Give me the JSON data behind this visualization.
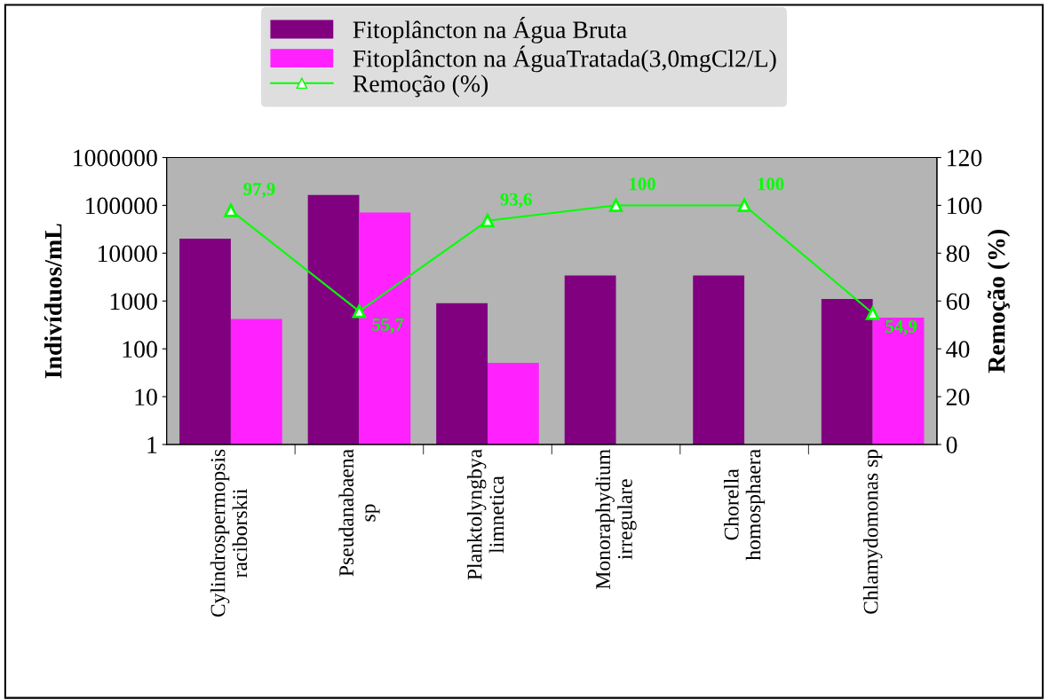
{
  "chart_data": {
    "type": "bar",
    "ylabel": "Indivíduos/mL",
    "y2label": "Remoção (%)",
    "categories": [
      "Cylindrospermopsis\nraciborskii",
      "Pseudanabaena\nsp",
      "Planktolyngbya\nlimnetica",
      "Monoraphydium\nirregulare",
      "Chorella\nhomosphaera",
      "Chlamydomonas sp"
    ],
    "series": [
      {
        "name": "Fitoplâncton na Água Bruta",
        "color": "#800080",
        "values": [
          20000,
          165000,
          900,
          3400,
          3400,
          1100
        ]
      },
      {
        "name": "Fitoplâncton na ÁguaTratada(3,0mgCl2/L)",
        "color": "#ff22ff",
        "values": [
          420,
          71000,
          51,
          null,
          null,
          450
        ]
      },
      {
        "name": "Remoção (%)",
        "type": "line",
        "axis": "y2",
        "color": "#00ff00",
        "marker": "triangle",
        "values": [
          97.9,
          55.7,
          93.6,
          100,
          100,
          54.9
        ],
        "value_labels": [
          "97,9",
          "55,7",
          "93,6",
          "100",
          "100",
          "54,9"
        ]
      }
    ],
    "log": "y",
    "ylim": [
      1,
      1000000
    ],
    "yticks": [
      1,
      10,
      100,
      1000,
      10000,
      100000,
      1000000
    ],
    "y2lim": [
      0,
      120
    ],
    "y2ticks": [
      0,
      20,
      40,
      60,
      80,
      100,
      120
    ],
    "grid": false,
    "legend": "top"
  }
}
